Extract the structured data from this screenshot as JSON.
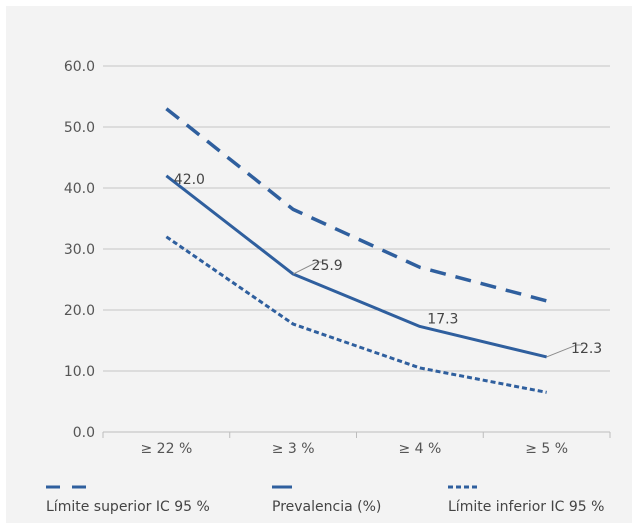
{
  "chart_data": {
    "type": "line",
    "categories": [
      "≥ 22 %",
      "≥ 3 %",
      "≥ 4 %",
      "≥ 5 %"
    ],
    "ylim": [
      0,
      60
    ],
    "yticks": [
      "0.0",
      "10.0",
      "20.0",
      "30.0",
      "40.0",
      "50.0",
      "60.0"
    ],
    "grid": true,
    "legend_position": "bottom",
    "series": [
      {
        "name": "Límite superior IC 95 %",
        "values": [
          53.0,
          36.5,
          27.0,
          21.5
        ],
        "style": "long-dash",
        "color": "#2f5f9e"
      },
      {
        "name": "Prevalencia (%)",
        "values": [
          42.0,
          25.9,
          17.3,
          12.3
        ],
        "style": "solid",
        "color": "#2f5f9e",
        "data_labels": [
          "42.0",
          "25.9",
          "17.3",
          "12.3"
        ]
      },
      {
        "name": "Límite inferior IC 95 %",
        "values": [
          32.0,
          17.7,
          10.5,
          6.5
        ],
        "style": "short-dash",
        "color": "#2f5f9e"
      }
    ]
  }
}
